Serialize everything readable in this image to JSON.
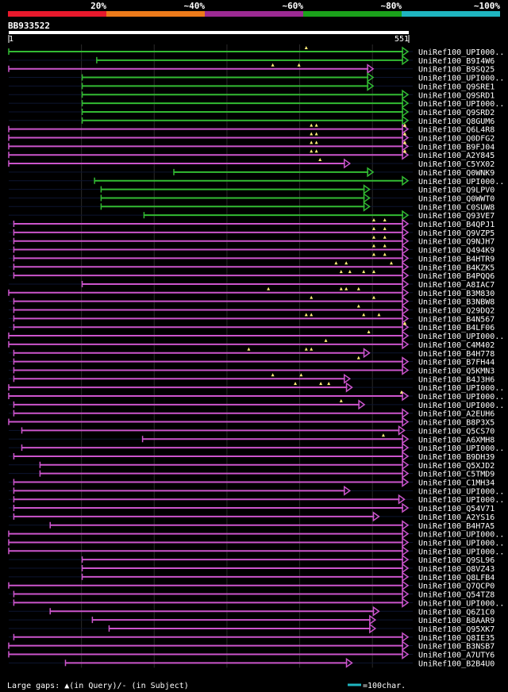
{
  "chart_data": {
    "type": "alignment-overview",
    "query_id": "BB933522",
    "query_range": {
      "start_label": "1",
      "end_label": "551",
      "length": 551
    },
    "identity_scale": [
      {
        "label": "20%",
        "color": "#e8192c"
      },
      {
        "label": "~40%",
        "color": "#ec7a1a"
      },
      {
        "label": "~60%",
        "color": "#9c2a93"
      },
      {
        "label": "~80%",
        "color": "#1ba11b"
      },
      {
        "label": "~100%",
        "color": "#1fb5c0"
      }
    ],
    "hits": [
      {
        "name": "UniRef100_UPI000..",
        "color": "#33bb33",
        "start": 1,
        "end": 573,
        "gaps": [
          410
        ]
      },
      {
        "name": "UniRef100_B9I4W6",
        "color": "#33bb33",
        "start": 122,
        "end": 586,
        "gaps": []
      },
      {
        "name": "UniRef100_B9SQ25",
        "color": "#cc55cc",
        "start": 1,
        "end": 502,
        "gaps": [
          364,
          400
        ]
      },
      {
        "name": "UniRef100_UPI000..",
        "color": "#33bb33",
        "start": 102,
        "end": 502,
        "gaps": []
      },
      {
        "name": "UniRef100_Q9SRE1",
        "color": "#33bb33",
        "start": 102,
        "end": 502,
        "gaps": []
      },
      {
        "name": "UniRef100_Q9SRD1",
        "color": "#33bb33",
        "start": 102,
        "end": 552,
        "gaps": []
      },
      {
        "name": "UniRef100_UPI000..",
        "color": "#33bb33",
        "start": 102,
        "end": 552,
        "gaps": []
      },
      {
        "name": "UniRef100_Q9SRD2",
        "color": "#33bb33",
        "start": 102,
        "end": 552,
        "gaps": []
      },
      {
        "name": "UniRef100_Q8GUM6",
        "color": "#33bb33",
        "start": 102,
        "end": 552,
        "gaps": []
      },
      {
        "name": "UniRef100_Q6L4R8",
        "color": "#cc55cc",
        "start": 1,
        "end": 578,
        "gaps": [
          417,
          424,
          572,
          584,
          594
        ]
      },
      {
        "name": "UniRef100_Q0DFG2",
        "color": "#cc55cc",
        "start": 1,
        "end": 578,
        "gaps": [
          417,
          424,
          572,
          584,
          594
        ]
      },
      {
        "name": "UniRef100_B9FJ04",
        "color": "#cc55cc",
        "start": 1,
        "end": 578,
        "gaps": [
          417,
          424,
          572,
          584,
          594
        ]
      },
      {
        "name": "UniRef100_A2Y845",
        "color": "#cc55cc",
        "start": 1,
        "end": 578,
        "gaps": [
          417,
          424,
          572,
          584,
          594
        ]
      },
      {
        "name": "UniRef100_C5YX02",
        "color": "#cc55cc",
        "start": 1,
        "end": 470,
        "gaps": [
          429
        ]
      },
      {
        "name": "UniRef100_Q0WNK9",
        "color": "#33bb33",
        "start": 228,
        "end": 502,
        "gaps": []
      },
      {
        "name": "UniRef100_UPI000..",
        "color": "#33bb33",
        "start": 119,
        "end": 552,
        "gaps": []
      },
      {
        "name": "UniRef100_Q9LPV0",
        "color": "#33bb33",
        "start": 128,
        "end": 497,
        "gaps": []
      },
      {
        "name": "UniRef100_Q0WWT0",
        "color": "#33bb33",
        "start": 128,
        "end": 497,
        "gaps": []
      },
      {
        "name": "UniRef100_C0SUW8",
        "color": "#33bb33",
        "start": 128,
        "end": 497,
        "gaps": []
      },
      {
        "name": "UniRef100_Q93VE7",
        "color": "#33bb33",
        "start": 187,
        "end": 552,
        "gaps": []
      },
      {
        "name": "UniRef100_B4QPJ1",
        "color": "#cc55cc",
        "start": 8,
        "end": 581,
        "gaps": [
          503,
          518
        ]
      },
      {
        "name": "UniRef100_Q9VZP5",
        "color": "#cc55cc",
        "start": 8,
        "end": 581,
        "gaps": [
          503,
          518
        ]
      },
      {
        "name": "UniRef100_Q9NJH7",
        "color": "#cc55cc",
        "start": 8,
        "end": 581,
        "gaps": [
          503,
          518
        ]
      },
      {
        "name": "UniRef100_Q494K9",
        "color": "#cc55cc",
        "start": 8,
        "end": 581,
        "gaps": [
          503,
          518
        ]
      },
      {
        "name": "UniRef100_B4HTR9",
        "color": "#cc55cc",
        "start": 8,
        "end": 581,
        "gaps": [
          503,
          518
        ]
      },
      {
        "name": "UniRef100_B4KZK5",
        "color": "#cc55cc",
        "start": 8,
        "end": 601,
        "gaps": [
          451,
          465,
          527
        ]
      },
      {
        "name": "UniRef100_B4PQQ6",
        "color": "#cc55cc",
        "start": 8,
        "end": 581,
        "gaps": [
          458,
          470,
          489,
          503
        ]
      },
      {
        "name": "UniRef100_A8IAC7",
        "color": "#cc55cc",
        "start": 102,
        "end": 601,
        "gaps": []
      },
      {
        "name": "UniRef100_B3M830",
        "color": "#cc55cc",
        "start": 1,
        "end": 581,
        "gaps": [
          358,
          458,
          465,
          482
        ]
      },
      {
        "name": "UniRef100_B3NBW8",
        "color": "#cc55cc",
        "start": 8,
        "end": 581,
        "gaps": [
          417,
          503
        ]
      },
      {
        "name": "UniRef100_Q29DQ2",
        "color": "#cc55cc",
        "start": 8,
        "end": 581,
        "gaps": [
          482
        ]
      },
      {
        "name": "UniRef100_B4N567",
        "color": "#cc55cc",
        "start": 8,
        "end": 593,
        "gaps": [
          410,
          417,
          489,
          510
        ]
      },
      {
        "name": "UniRef100_B4LF06",
        "color": "#cc55cc",
        "start": 8,
        "end": 605,
        "gaps": [
          560,
          566,
          572
        ]
      },
      {
        "name": "UniRef100_UPI000..",
        "color": "#cc55cc",
        "start": 1,
        "end": 581,
        "gaps": [
          496
        ]
      },
      {
        "name": "UniRef100_C4M402",
        "color": "#cc55cc",
        "start": 1,
        "end": 601,
        "gaps": [
          437
        ]
      },
      {
        "name": "UniRef100_B4H778",
        "color": "#cc55cc",
        "start": 8,
        "end": 497,
        "gaps": [
          331,
          410,
          417
        ]
      },
      {
        "name": "UniRef100_B7FH44",
        "color": "#cc55cc",
        "start": 8,
        "end": 581,
        "gaps": [
          482
        ]
      },
      {
        "name": "UniRef100_Q5KMN3",
        "color": "#cc55cc",
        "start": 8,
        "end": 581,
        "gaps": []
      },
      {
        "name": "UniRef100_B4J3H6",
        "color": "#cc55cc",
        "start": 8,
        "end": 470,
        "gaps": [
          364,
          403
        ]
      },
      {
        "name": "UniRef100_UPI000..",
        "color": "#cc55cc",
        "start": 1,
        "end": 473,
        "gaps": [
          395,
          430,
          441
        ]
      },
      {
        "name": "UniRef100_UPI000..",
        "color": "#cc55cc",
        "start": 1,
        "end": 601,
        "gaps": [
          541
        ]
      },
      {
        "name": "UniRef100_UPI000..",
        "color": "#cc55cc",
        "start": 8,
        "end": 490,
        "gaps": [
          458
        ]
      },
      {
        "name": "UniRef100_A2EUH6",
        "color": "#cc55cc",
        "start": 8,
        "end": 601,
        "gaps": []
      },
      {
        "name": "UniRef100_B8P3X5",
        "color": "#cc55cc",
        "start": 1,
        "end": 566,
        "gaps": []
      },
      {
        "name": "UniRef100_Q5CS70",
        "color": "#cc55cc",
        "start": 19,
        "end": 545,
        "gaps": []
      },
      {
        "name": "UniRef100_A6XMH8",
        "color": "#cc55cc",
        "start": 185,
        "end": 601,
        "gaps": [
          516
        ]
      },
      {
        "name": "UniRef100_UPI000..",
        "color": "#cc55cc",
        "start": 19,
        "end": 601,
        "gaps": []
      },
      {
        "name": "UniRef100_B9DH39",
        "color": "#cc55cc",
        "start": 8,
        "end": 601,
        "gaps": []
      },
      {
        "name": "UniRef100_Q5XJD2",
        "color": "#cc55cc",
        "start": 44,
        "end": 601,
        "gaps": []
      },
      {
        "name": "UniRef100_C5TMD9",
        "color": "#cc55cc",
        "start": 44,
        "end": 601,
        "gaps": []
      },
      {
        "name": "UniRef100_C1MH34",
        "color": "#cc55cc",
        "start": 8,
        "end": 601,
        "gaps": []
      },
      {
        "name": "UniRef100_UPI000..",
        "color": "#cc55cc",
        "start": 8,
        "end": 470,
        "gaps": []
      },
      {
        "name": "UniRef100_UPI000..",
        "color": "#cc55cc",
        "start": 8,
        "end": 545,
        "gaps": []
      },
      {
        "name": "UniRef100_Q54V71",
        "color": "#cc55cc",
        "start": 8,
        "end": 601,
        "gaps": []
      },
      {
        "name": "UniRef100_A2YS16",
        "color": "#cc55cc",
        "start": 8,
        "end": 510,
        "gaps": []
      },
      {
        "name": "UniRef100_B4H7A5",
        "color": "#cc55cc",
        "start": 58,
        "end": 578,
        "gaps": []
      },
      {
        "name": "UniRef100_UPI000..",
        "color": "#cc55cc",
        "start": 1,
        "end": 601,
        "gaps": []
      },
      {
        "name": "UniRef100_UPI000..",
        "color": "#cc55cc",
        "start": 1,
        "end": 578,
        "gaps": []
      },
      {
        "name": "UniRef100_UPI000..",
        "color": "#cc55cc",
        "start": 1,
        "end": 601,
        "gaps": []
      },
      {
        "name": "UniRef100_Q9SL96",
        "color": "#cc55cc",
        "start": 102,
        "end": 601,
        "gaps": []
      },
      {
        "name": "UniRef100_Q8VZ43",
        "color": "#cc55cc",
        "start": 102,
        "end": 601,
        "gaps": []
      },
      {
        "name": "UniRef100_Q8LFB4",
        "color": "#cc55cc",
        "start": 102,
        "end": 601,
        "gaps": []
      },
      {
        "name": "UniRef100_Q7QCP0",
        "color": "#cc55cc",
        "start": 1,
        "end": 566,
        "gaps": []
      },
      {
        "name": "UniRef100_Q54TZ8",
        "color": "#cc55cc",
        "start": 8,
        "end": 601,
        "gaps": []
      },
      {
        "name": "UniRef100_UPI000..",
        "color": "#cc55cc",
        "start": 8,
        "end": 601,
        "gaps": []
      },
      {
        "name": "UniRef100_Q6Z1C0",
        "color": "#cc55cc",
        "start": 58,
        "end": 510,
        "gaps": []
      },
      {
        "name": "UniRef100_B8AAR9",
        "color": "#cc55cc",
        "start": 116,
        "end": 505,
        "gaps": []
      },
      {
        "name": "UniRef100_Q95XK7",
        "color": "#cc55cc",
        "start": 139,
        "end": 505,
        "gaps": []
      },
      {
        "name": "UniRef100_Q8IE35",
        "color": "#cc55cc",
        "start": 8,
        "end": 581,
        "gaps": []
      },
      {
        "name": "UniRef100_B3NSB7",
        "color": "#cc55cc",
        "start": 1,
        "end": 601,
        "gaps": []
      },
      {
        "name": "UniRef100_A7UTY6",
        "color": "#cc55cc",
        "start": 1,
        "end": 601,
        "gaps": []
      },
      {
        "name": "UniRef100_B2B4U0",
        "color": "#cc55cc",
        "start": 79,
        "end": 473,
        "gaps": []
      }
    ],
    "footer": {
      "gaps_legend": "Large gaps: ▲(in Query)/- (in Subject)",
      "scale_legend": "=100char.",
      "scale_color": "#1fb5c0"
    }
  }
}
